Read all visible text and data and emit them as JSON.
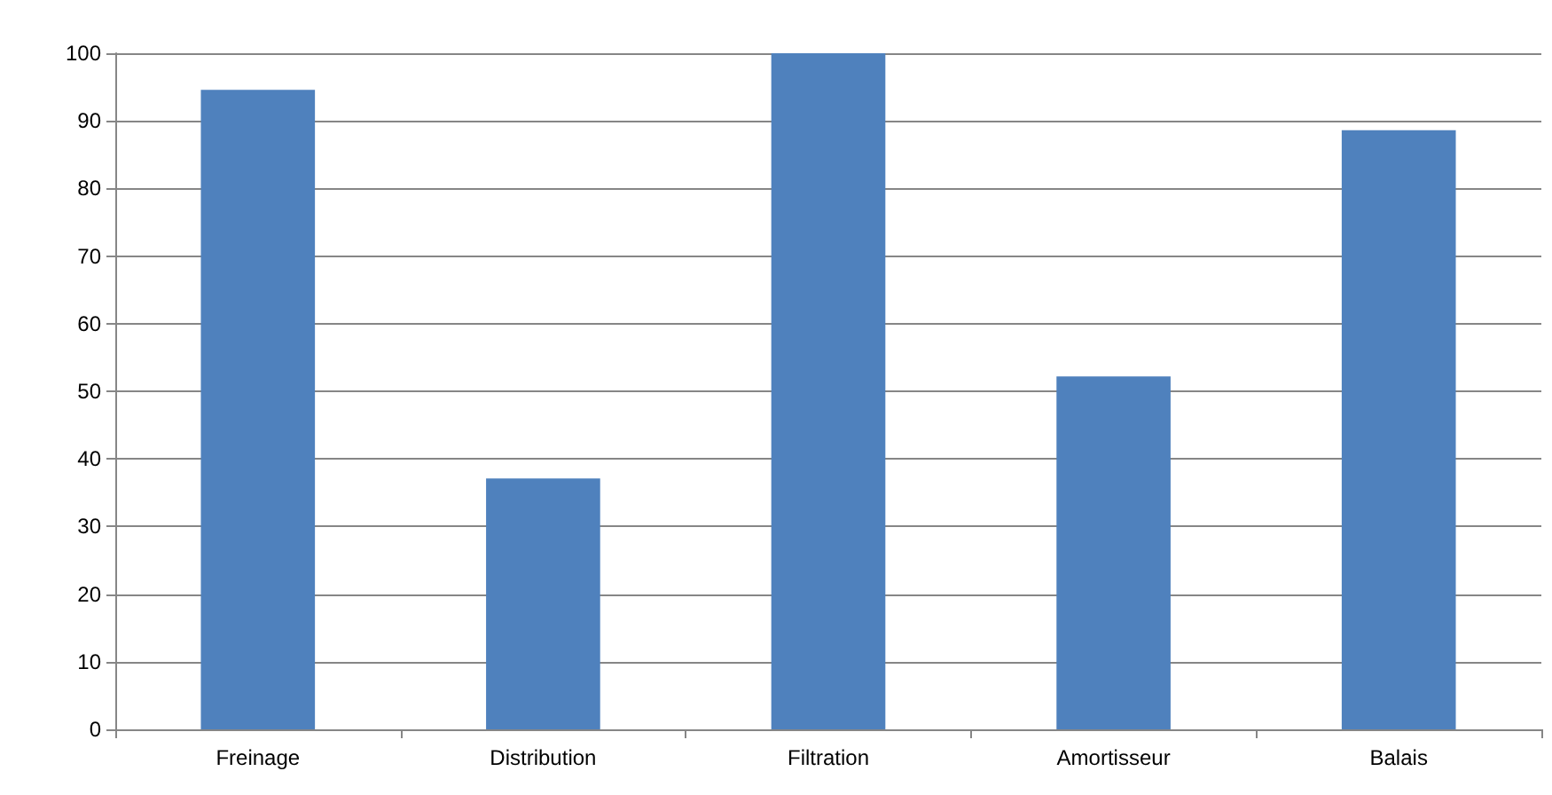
{
  "chart_data": {
    "type": "bar",
    "categories": [
      "Freinage",
      "Distribution",
      "Filtration",
      "Amortisseur",
      "Balais"
    ],
    "values": [
      94.6,
      37.1,
      100,
      52.2,
      88.6
    ],
    "color": "#4f81bd",
    "ylim": [
      0,
      100
    ],
    "yticks": [
      0,
      10,
      20,
      30,
      40,
      50,
      60,
      70,
      80,
      90,
      100
    ],
    "grid": "y"
  }
}
